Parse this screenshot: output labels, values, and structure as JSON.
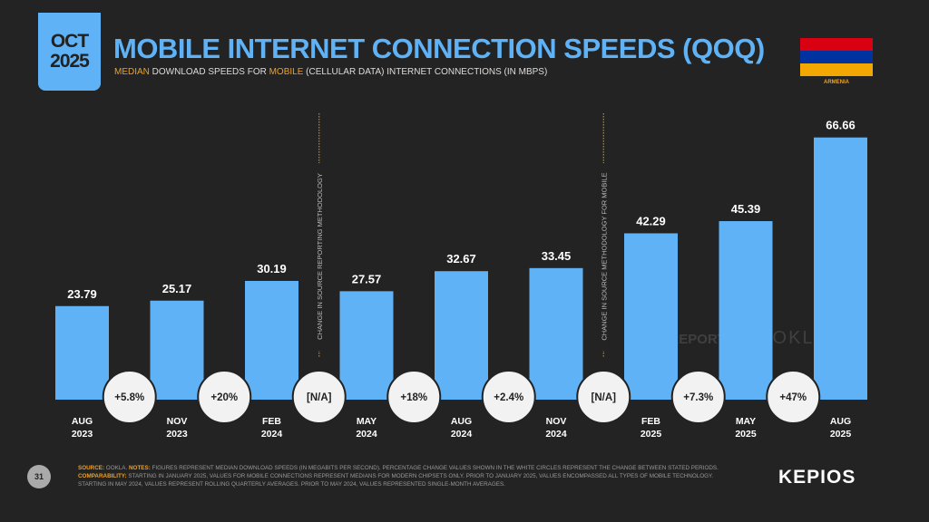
{
  "header": {
    "month": "OCT",
    "year": "2025",
    "title": "MOBILE INTERNET CONNECTION SPEEDS (QOQ)",
    "subtitle_parts": [
      "MEDIAN",
      " DOWNLOAD SPEEDS FOR ",
      "MOBILE",
      " (CELLULAR DATA) INTERNET CONNECTIONS (IN MBPS)"
    ],
    "country": "ARMENIA",
    "flag_colors": [
      "#d90012",
      "#0033a0",
      "#f2a800"
    ]
  },
  "chart_data": {
    "type": "bar",
    "title": "MOBILE INTERNET CONNECTION SPEEDS (QOQ)",
    "ylabel": "Mbps",
    "categories": [
      [
        "AUG",
        "2023"
      ],
      [
        "NOV",
        "2023"
      ],
      [
        "FEB",
        "2024"
      ],
      [
        "MAY",
        "2024"
      ],
      [
        "AUG",
        "2024"
      ],
      [
        "NOV",
        "2024"
      ],
      [
        "FEB",
        "2025"
      ],
      [
        "MAY",
        "2025"
      ],
      [
        "AUG",
        "2025"
      ]
    ],
    "values": [
      23.79,
      25.17,
      30.19,
      27.57,
      32.67,
      33.45,
      42.29,
      45.39,
      66.66
    ],
    "value_labels": [
      "23.79",
      "25.17",
      "30.19",
      "27.57",
      "32.67",
      "33.45",
      "42.29",
      "45.39",
      "66.66"
    ],
    "changes": [
      "+5.8%",
      "+20%",
      "[N/A]",
      "+18%",
      "+2.4%",
      "[N/A]",
      "+7.3%",
      "+47%"
    ],
    "annotations": [
      {
        "after_index": 2,
        "text": "CHANGE IN SOURCE REPORTING METHODOLOGY"
      },
      {
        "after_index": 5,
        "text": "CHANGE IN SOURCE METHODOLOGY FOR MOBILE"
      }
    ],
    "bar_color": "#5fb2f5",
    "grid": false
  },
  "watermarks": [
    "DATAREPORTAL",
    "OOKLA"
  ],
  "footer": {
    "source_label": "SOURCE:",
    "source": " OOKLA. ",
    "notes_label": "NOTES:",
    "notes": " FIGURES REPRESENT MEDIAN DOWNLOAD SPEEDS (IN MEGABITS PER SECOND). PERCENTAGE CHANGE VALUES SHOWN IN THE WHITE CIRCLES REPRESENT THE CHANGE BETWEEN STATED PERIODS. ",
    "comp_label": "COMPARABILITY:",
    "comp": " STARTING IN JANUARY 2025, VALUES FOR MOBILE CONNECTIONS REPRESENT MEDIANS FOR MODERN CHIPSETS ONLY. PRIOR TO JANUARY 2025, VALUES ENCOMPASSED ALL TYPES OF MOBILE TECHNOLOGY. STARTING IN MAY 2024, VALUES REPRESENT ROLLING QUARTERLY AVERAGES. PRIOR TO MAY 2024, VALUES REPRESENTED SINGLE-MONTH AVERAGES.",
    "page": "31",
    "brand": "KEPIOS"
  }
}
